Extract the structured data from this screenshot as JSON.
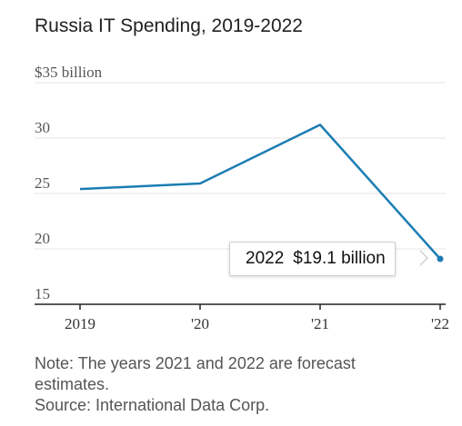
{
  "title": "Russia IT Spending, 2019-2022",
  "note": "Note: The years 2021 and 2022 are forecast estimates.",
  "source": "Source: International Data Corp.",
  "tooltip": {
    "year": "2022",
    "value": "$19.1 billion"
  },
  "colors": {
    "line": "#1b7db3",
    "grid": "#e4e4e4",
    "axis": "#222222"
  },
  "chart_data": {
    "type": "line",
    "title": "Russia IT Spending, 2019-2022",
    "x": [
      "2019",
      "2020",
      "2021",
      "2022"
    ],
    "series": [
      {
        "values": [
          25.4,
          25.9,
          31.2,
          19.1
        ]
      }
    ],
    "ylim": [
      15,
      35
    ],
    "yticks": [
      15,
      20,
      25,
      30,
      35
    ],
    "ytick_labels": [
      "15",
      "20",
      "25",
      "30",
      "$35 billion"
    ],
    "xtick_labels": [
      "2019",
      "'20",
      "'21",
      "'22"
    ],
    "grid": true
  }
}
